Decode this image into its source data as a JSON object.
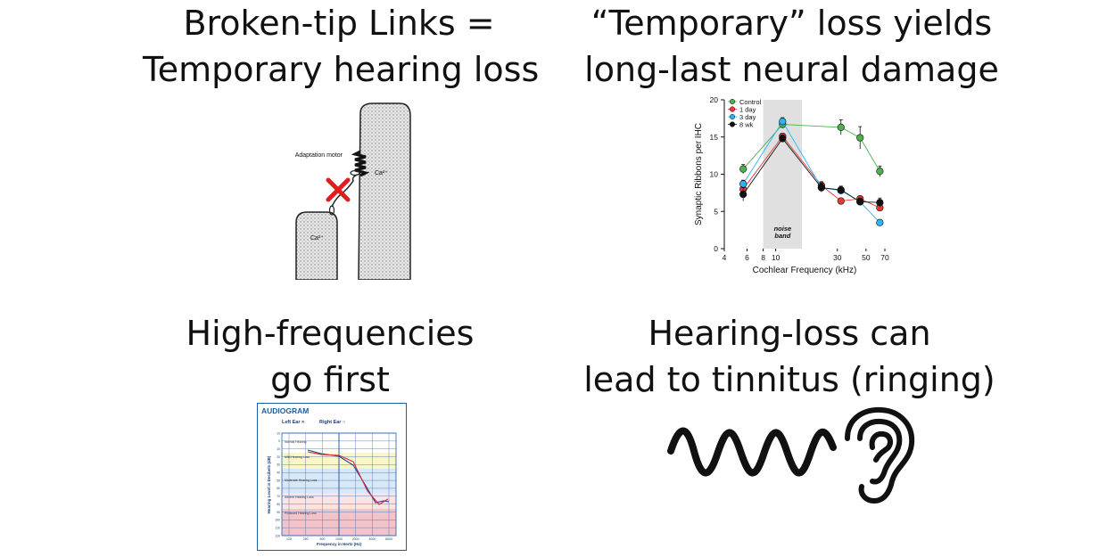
{
  "panels": {
    "top_left": {
      "title_lines": [
        "Broken-tip Links =",
        "Temporary hearing loss"
      ],
      "figure": {
        "label_motor": "Adaptation motor",
        "label_ca_right": "Ca²⁺",
        "label_ca_left": "Ca²⁺"
      }
    },
    "top_right": {
      "title_lines": [
        "“Temporary” loss yields",
        "long-last neural damage"
      ]
    },
    "bottom_left": {
      "title_lines": [
        "High-frequencies",
        "go first"
      ],
      "audiogram": {
        "title": "AUDIOGRAM",
        "legend_left": "Left Ear ×",
        "legend_right": "Right Ear ○",
        "x_label": "Frequency in Hertz (Hz)",
        "y_label": "Hearing Level in Decibels (dB)",
        "bands": [
          "Normal Hearing",
          "Mild Hearing Loss",
          "Moderate Hearing Loss",
          "Severe Hearing Loss",
          "Profound Hearing Loss"
        ],
        "x_ticks": [
          "125",
          "250",
          "500",
          "1000",
          "2000",
          "4000",
          "8000"
        ],
        "y_ticks": [
          "-10",
          "0",
          "10",
          "20",
          "30",
          "40",
          "50",
          "60",
          "70",
          "80",
          "90",
          "100",
          "110",
          "120"
        ]
      }
    },
    "bottom_right": {
      "title_lines": [
        "Hearing-loss can",
        "lead to tinnitus (ringing)"
      ]
    }
  },
  "chart_data": {
    "type": "line",
    "xlabel": "Cochlear Frequency (kHz)",
    "ylabel": "Synaptic Ribbons per IHC",
    "x_scale": "log",
    "xlim": [
      4,
      70
    ],
    "ylim": [
      0,
      20
    ],
    "x_ticks": [
      4,
      6,
      8,
      10,
      30,
      50,
      70
    ],
    "y_ticks": [
      0,
      5,
      10,
      15,
      20
    ],
    "shaded_band": {
      "x_from": 8,
      "x_to": 16,
      "label": "noise band"
    },
    "legend_position": "top-left",
    "series": [
      {
        "name": "Control",
        "color": "#4caf50",
        "x": [
          5.6,
          11.3,
          32,
          45,
          64
        ],
        "values": [
          10.7,
          16.7,
          16.3,
          14.9,
          10.4
        ],
        "err": [
          0.6,
          0.5,
          1.0,
          1.5,
          0.7
        ]
      },
      {
        "name": "1 day",
        "color": "#e53935",
        "x": [
          5.6,
          11.3,
          22.6,
          32,
          45,
          64
        ],
        "values": [
          8.0,
          15.1,
          8.5,
          6.4,
          6.7,
          5.5
        ],
        "err": [
          0.5,
          0.4,
          0.5,
          0.4,
          0.4,
          0.4
        ]
      },
      {
        "name": "3 day",
        "color": "#29b6f6",
        "x": [
          5.6,
          11.3,
          22.6,
          32,
          45,
          64
        ],
        "values": [
          8.7,
          17.1,
          8.2,
          7.8,
          6.3,
          3.5
        ],
        "err": [
          0.5,
          0.5,
          0.5,
          0.4,
          0.4,
          0.4
        ]
      },
      {
        "name": "8 wk",
        "color": "#111111",
        "x": [
          5.6,
          11.3,
          22.6,
          32,
          45,
          64
        ],
        "values": [
          7.3,
          14.8,
          8.2,
          7.9,
          6.3,
          6.2
        ],
        "err": [
          0.9,
          0.5,
          0.6,
          0.5,
          0.5,
          0.6
        ]
      }
    ]
  }
}
